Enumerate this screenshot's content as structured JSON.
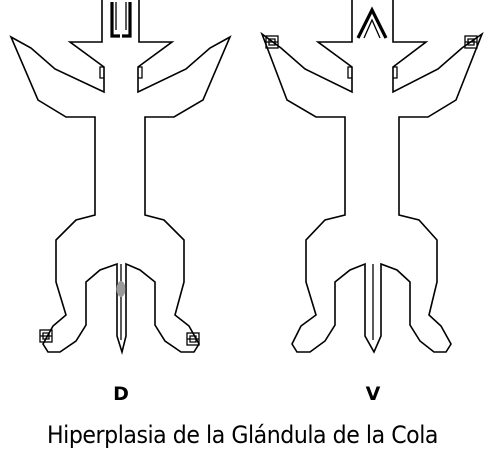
{
  "views": [
    {
      "id": "dorsal",
      "label": "D"
    },
    {
      "id": "ventral",
      "label": "V"
    }
  ],
  "marker": {
    "description": "gland",
    "color": "#999999"
  },
  "caption": "Hiperplasia de la Glándula de la Cola"
}
